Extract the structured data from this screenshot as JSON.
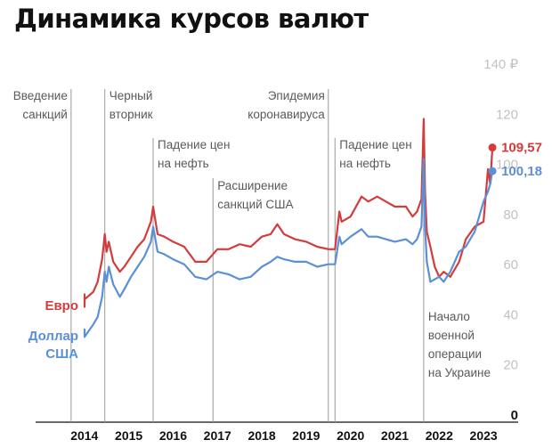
{
  "title": "Динамика курсов валют",
  "chart_data": {
    "type": "line",
    "title": "Динамика курсов валют",
    "xlabel": "",
    "ylabel": "",
    "xlim": [
      2013.4,
      2024.2
    ],
    "ylim": [
      0,
      140
    ],
    "x_ticks": [
      "2014",
      "2015",
      "2016",
      "2017",
      "2018",
      "2019",
      "2020",
      "2021",
      "2022",
      "2023"
    ],
    "y_ticks": [
      "0",
      "20",
      "40",
      "60",
      "80",
      "100",
      "120",
      "140 ₽"
    ],
    "grid": false,
    "colors": {
      "euro": "#d43c3c",
      "usd": "#5b8fd6",
      "annotation_line": "#9a9a9a"
    },
    "series": [
      {
        "name": "Евро",
        "x": [
          2013.1,
          2013.3,
          2013.5,
          2013.7,
          2013.9,
          2014.1,
          2014.3,
          2014.5,
          2014.7,
          2014.8,
          2014.9,
          2014.96,
          2015.0,
          2015.05,
          2015.15,
          2015.3,
          2015.4,
          2015.55,
          2015.7,
          2015.85,
          2016.0,
          2016.05,
          2016.15,
          2016.3,
          2016.5,
          2016.75,
          2017.0,
          2017.25,
          2017.5,
          2017.75,
          2018.0,
          2018.25,
          2018.5,
          2018.7,
          2018.85,
          2019.0,
          2019.25,
          2019.5,
          2019.75,
          2020.0,
          2020.15,
          2020.25,
          2020.3,
          2020.5,
          2020.75,
          2020.9,
          2021.1,
          2021.3,
          2021.5,
          2021.75,
          2021.9,
          2022.0,
          2022.1,
          2022.15,
          2022.18,
          2022.22,
          2022.3,
          2022.4,
          2022.5,
          2022.6,
          2022.75,
          2022.95,
          2023.1,
          2023.3,
          2023.5,
          2023.6,
          2023.65,
          2023.7
        ],
        "values": [
          46,
          48,
          47,
          46,
          48,
          50,
          51,
          49,
          52,
          56,
          65,
          75,
          68,
          72,
          64,
          60,
          62,
          66,
          70,
          73,
          80,
          86,
          75,
          74,
          72,
          70,
          64,
          64,
          69,
          69,
          71,
          70,
          74,
          75,
          79,
          75,
          73,
          72,
          70,
          69,
          69,
          84,
          80,
          82,
          90,
          88,
          90,
          88,
          86,
          86,
          82,
          84,
          89,
          121,
          92,
          76,
          70,
          62,
          58,
          60,
          58,
          64,
          73,
          78,
          80,
          101,
          95,
          109.57
        ]
      },
      {
        "name": "Доллар США",
        "x": [
          2013.1,
          2013.3,
          2013.5,
          2013.7,
          2013.9,
          2014.1,
          2014.3,
          2014.5,
          2014.7,
          2014.8,
          2014.9,
          2014.96,
          2015.0,
          2015.05,
          2015.15,
          2015.3,
          2015.4,
          2015.55,
          2015.7,
          2015.85,
          2016.0,
          2016.05,
          2016.15,
          2016.3,
          2016.5,
          2016.75,
          2017.0,
          2017.25,
          2017.5,
          2017.75,
          2018.0,
          2018.25,
          2018.5,
          2018.7,
          2018.85,
          2019.0,
          2019.25,
          2019.5,
          2019.75,
          2020.0,
          2020.15,
          2020.25,
          2020.3,
          2020.5,
          2020.75,
          2020.9,
          2021.1,
          2021.3,
          2021.5,
          2021.75,
          2021.9,
          2022.0,
          2022.1,
          2022.15,
          2022.18,
          2022.22,
          2022.3,
          2022.4,
          2022.5,
          2022.6,
          2022.75,
          2022.95,
          2023.1,
          2023.3,
          2023.5,
          2023.6,
          2023.65,
          2023.7
        ],
        "values": [
          34,
          36,
          34,
          35,
          35,
          36,
          37,
          34,
          39,
          42,
          50,
          60,
          56,
          62,
          55,
          50,
          53,
          58,
          62,
          66,
          72,
          78,
          68,
          67,
          65,
          63,
          58,
          57,
          60,
          59,
          57,
          58,
          62,
          64,
          66,
          65,
          64,
          64,
          62,
          63,
          63,
          74,
          71,
          74,
          77,
          74,
          74,
          73,
          72,
          73,
          71,
          73,
          78,
          105,
          78,
          64,
          56,
          57,
          58,
          56,
          60,
          68,
          70,
          76,
          88,
          92,
          95,
          100.18
        ]
      }
    ],
    "end_labels": {
      "euro": "109,57",
      "usd": "100,18"
    },
    "series_labels": {
      "euro": "Евро",
      "usd_line1": "Доллар",
      "usd_line2": "США"
    },
    "annotations": [
      {
        "x": 2014.2,
        "line1": "Введение",
        "line2": "санкций",
        "align": "end"
      },
      {
        "x": 2014.96,
        "line1": "Черный",
        "line2": "вторник",
        "align": "start"
      },
      {
        "x": 2016.05,
        "line1": "Падение цен",
        "line2": "на нефть",
        "align": "start"
      },
      {
        "x": 2017.4,
        "line1": "Расширение",
        "line2": "санкций США",
        "align": "start"
      },
      {
        "x": 2020.0,
        "line1": "Эпидемия",
        "line2": "коронавируса",
        "align": "end"
      },
      {
        "x": 2020.15,
        "line1": "Падение цен",
        "line2": "на нефть",
        "align": "start"
      },
      {
        "x": 2022.15,
        "line1": "Начало",
        "line2": "военной",
        "line3": "операции",
        "line4": "на Украине",
        "align": "start"
      }
    ]
  }
}
